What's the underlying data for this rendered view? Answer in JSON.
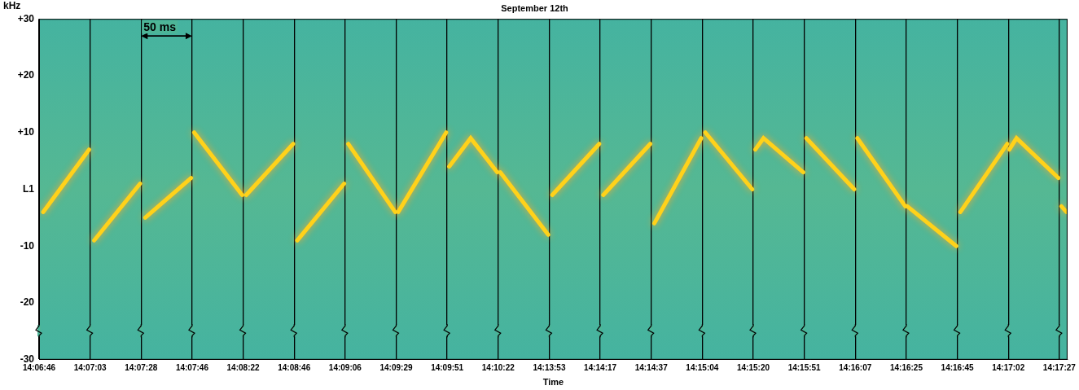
{
  "chart_data": {
    "type": "line",
    "title": "September 12th",
    "x_label": "Time",
    "y_label": "kHz",
    "x": [
      4,
      49,
      50,
      54,
      99,
      100,
      104,
      149,
      150,
      152,
      199,
      200,
      203,
      249,
      250,
      253,
      299,
      300,
      303,
      349,
      350,
      352,
      399,
      400,
      402,
      423,
      449,
      450,
      452,
      499,
      500,
      503,
      549,
      550,
      553,
      599,
      600,
      603,
      649,
      650,
      653,
      699,
      700,
      702,
      710,
      749,
      750,
      752,
      799,
      800,
      802,
      849,
      850,
      851,
      899,
      900,
      903,
      949,
      950,
      951,
      958,
      999,
      1000,
      1002,
      1007
    ],
    "values": [
      -4,
      7,
      null,
      -9,
      1,
      null,
      -5,
      2,
      null,
      10,
      -1,
      null,
      -1,
      8,
      null,
      -9,
      1,
      null,
      8,
      -4,
      null,
      -4,
      10,
      null,
      4,
      9,
      3,
      null,
      3,
      -8,
      null,
      -1,
      8,
      null,
      -1,
      8,
      null,
      -6,
      9,
      null,
      10,
      0,
      null,
      7,
      9,
      3,
      null,
      9,
      0,
      null,
      9,
      -3,
      null,
      -3,
      -10,
      null,
      -4,
      8,
      null,
      7,
      9,
      2,
      null,
      -3,
      -4
    ],
    "color": "#ffd21a",
    "marker": "none",
    "line_style": "solid",
    "xlim": [
      0,
      1008
    ],
    "xticks": [
      {
        "value": 0,
        "label": "14:06:46"
      },
      {
        "value": 50,
        "label": "14:07:03"
      },
      {
        "value": 100,
        "label": "14:07:28"
      },
      {
        "value": 150,
        "label": "14:07:46"
      },
      {
        "value": 200,
        "label": "14:08:22"
      },
      {
        "value": 250,
        "label": "14:08:46"
      },
      {
        "value": 300,
        "label": "14:09:06"
      },
      {
        "value": 350,
        "label": "14:09:29"
      },
      {
        "value": 400,
        "label": "14:09:51"
      },
      {
        "value": 450,
        "label": "14:10:22"
      },
      {
        "value": 500,
        "label": "14:13:53"
      },
      {
        "value": 550,
        "label": "14:14:17"
      },
      {
        "value": 600,
        "label": "14:14:37"
      },
      {
        "value": 650,
        "label": "14:15:04"
      },
      {
        "value": 700,
        "label": "14:15:20"
      },
      {
        "value": 750,
        "label": "14:15:51"
      },
      {
        "value": 800,
        "label": "14:16:07"
      },
      {
        "value": 850,
        "label": "14:16:25"
      },
      {
        "value": 900,
        "label": "14:16:45"
      },
      {
        "value": 950,
        "label": "14:17:02"
      },
      {
        "value": 1000,
        "label": "14:17:27"
      }
    ],
    "ylim": [
      -30,
      30
    ],
    "yticks": [
      {
        "value": 30,
        "label": "+30"
      },
      {
        "value": 20,
        "label": "+20"
      },
      {
        "value": 10,
        "label": "+10"
      },
      {
        "value": 0,
        "label": "L1"
      },
      -10,
      -20,
      -30
    ],
    "grid": true,
    "annotations": [
      {
        "text": "50 ms",
        "x": [
          100,
          150
        ],
        "y": 27
      }
    ]
  }
}
